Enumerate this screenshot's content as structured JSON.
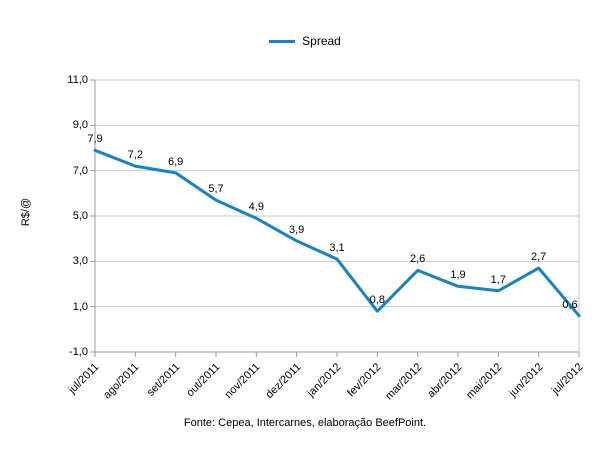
{
  "legend": {
    "label": "Spread"
  },
  "footer": {
    "source_text": "Fonte: Cepea, Intercarnes, elaboração BeefPoint."
  },
  "colors": {
    "line": "#1783C5",
    "grid": "#C9C9C9",
    "axis": "#9A9A9A",
    "text": "#000000",
    "background": "#FFFFFF"
  },
  "chart_data": {
    "type": "line",
    "title": "",
    "ylabel": "R$/@",
    "xlabel": "",
    "legend_position": "top",
    "grid": "horizontal",
    "ylim": [
      -1,
      11
    ],
    "ytick_values": [
      -1,
      1,
      3,
      5,
      7,
      9,
      11
    ],
    "ytick_labels": [
      "-1,0",
      "1,0",
      "3,0",
      "5,0",
      "7,0",
      "9,0",
      "11,0"
    ],
    "categories": [
      "jul/2011",
      "ago/2011",
      "set/2011",
      "out/2011",
      "nov/2011",
      "dez/2011",
      "jan/2012",
      "fev/2012",
      "mar/2012",
      "abr/2012",
      "mai/2012",
      "jun/2012",
      "jul/2012"
    ],
    "series": [
      {
        "name": "Spread",
        "values": [
          7.9,
          7.2,
          6.9,
          5.7,
          4.9,
          3.9,
          3.1,
          0.8,
          2.6,
          1.9,
          1.7,
          2.7,
          0.6
        ],
        "data_labels": [
          "7,9",
          "7,2",
          "6,9",
          "5,7",
          "4,9",
          "3,9",
          "3,1",
          "0,8",
          "2,6",
          "1,9",
          "1,7",
          "2,7",
          "0,6"
        ]
      }
    ]
  }
}
